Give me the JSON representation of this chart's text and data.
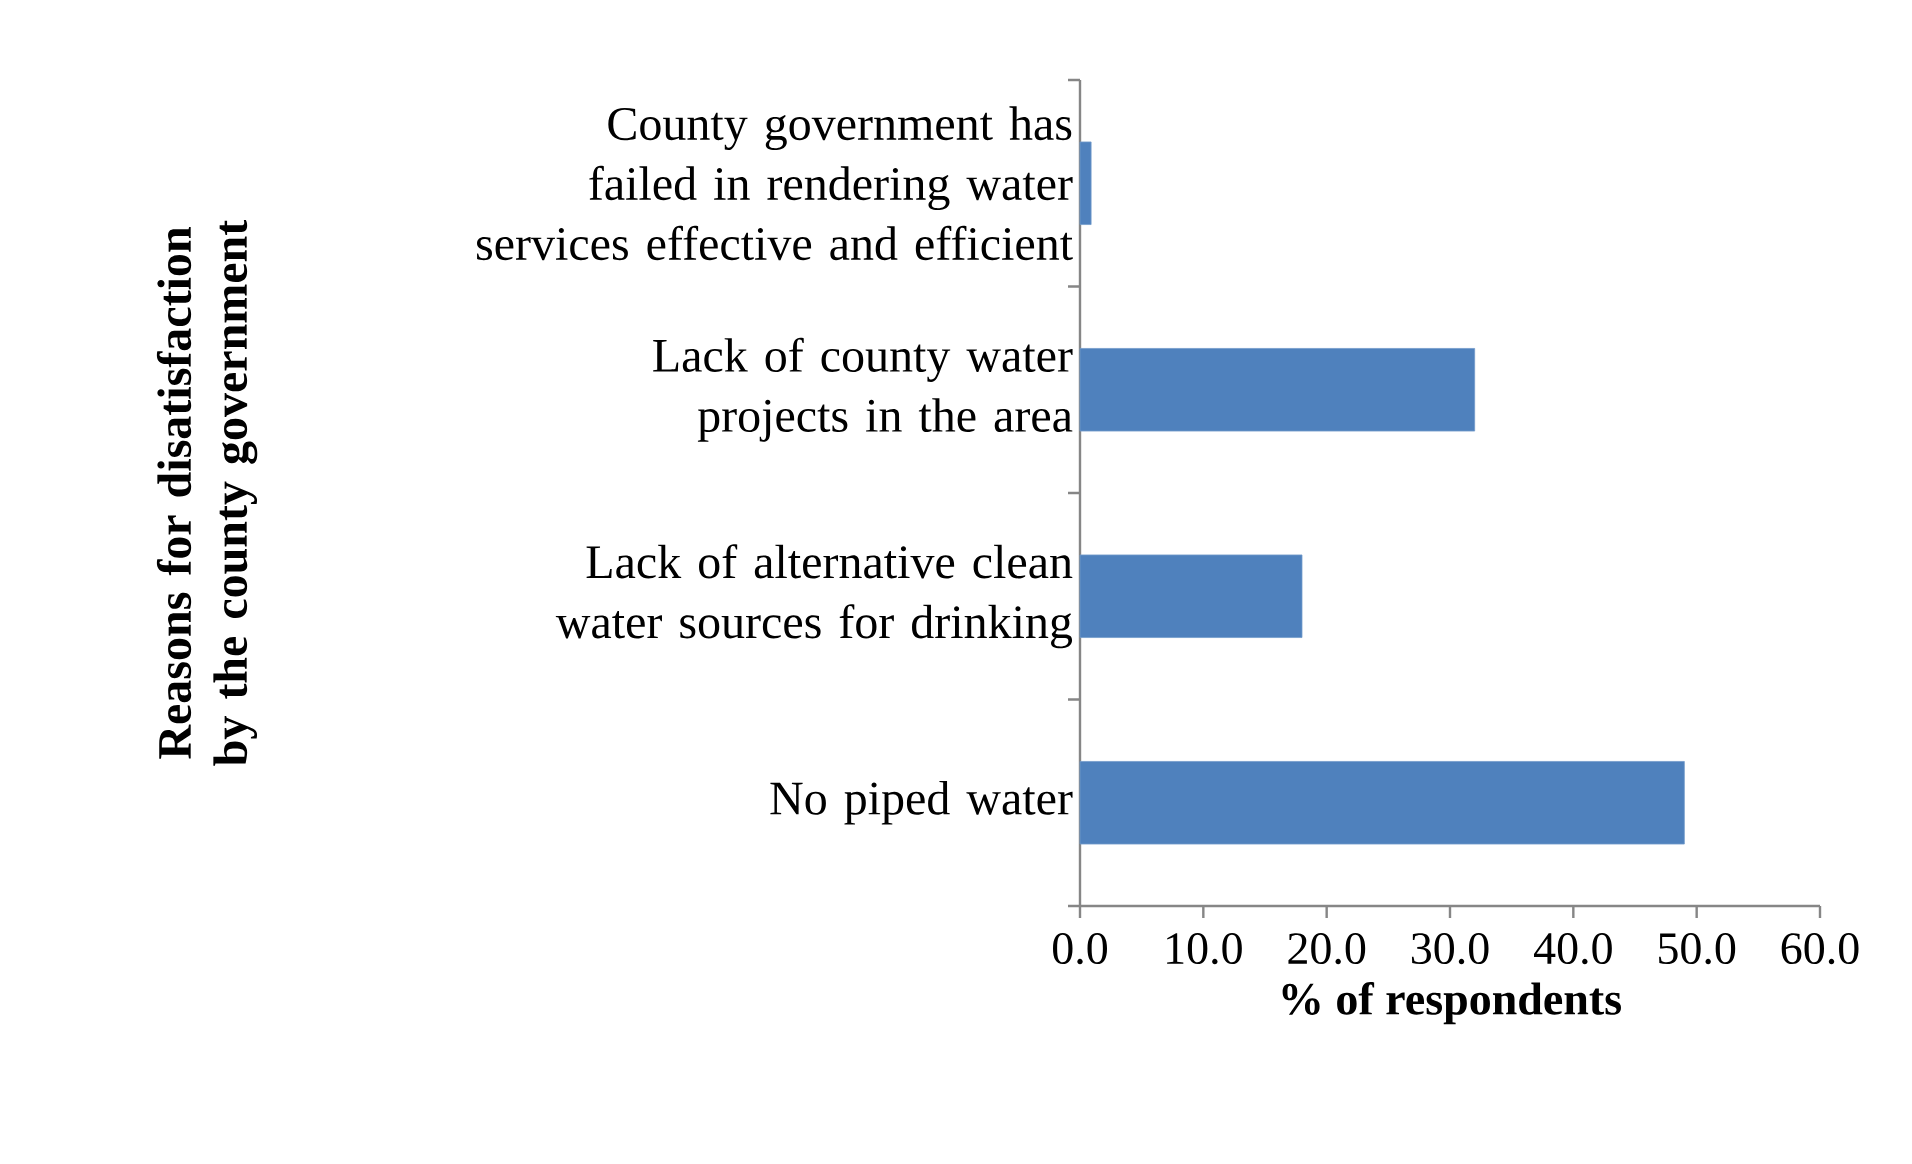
{
  "chart_data": {
    "type": "bar",
    "orientation": "horizontal",
    "categories": [
      "County government has failed in rendering water services effective and efficient",
      "Lack of county water projects in the area",
      "Lack of  alternative clean water sources for drinking",
      "No piped water"
    ],
    "values": [
      0.9,
      32,
      18,
      49
    ],
    "color": "#4f81bd",
    "xlabel": "% of respondents",
    "ylabel": "Reasons for disatisfaction by the county government",
    "xlim": [
      0,
      60
    ],
    "xticks": [
      {
        "value": 0,
        "label": "0.0"
      },
      {
        "value": 10,
        "label": "10.0"
      },
      {
        "value": 20,
        "label": "20.0"
      },
      {
        "value": 30,
        "label": "30.0"
      },
      {
        "value": 40,
        "label": "40.0"
      },
      {
        "value": 50,
        "label": "50.0"
      },
      {
        "value": 60,
        "label": "60.0"
      }
    ]
  }
}
